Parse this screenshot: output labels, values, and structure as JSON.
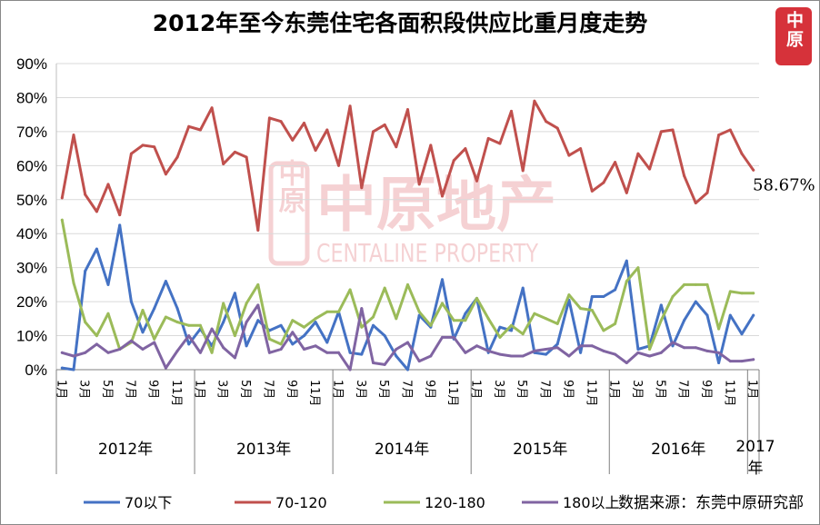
{
  "chart_data": {
    "type": "line",
    "title": "2012年至今东莞住宅各面积段供应比重月度走势",
    "source": "数据来源：东莞中原研究部",
    "watermark": {
      "cn": "中原地产",
      "en": "CENTALINE PROPERTY",
      "logo": "中原"
    },
    "logo": "中原",
    "ylim": [
      0,
      90
    ],
    "yticks": [
      0,
      10,
      20,
      30,
      40,
      50,
      60,
      70,
      80,
      90
    ],
    "ytick_labels": [
      "0%",
      "10%",
      "20%",
      "30%",
      "40%",
      "50%",
      "60%",
      "70%",
      "80%",
      "90%"
    ],
    "grid": true,
    "legend_position": "bottom",
    "month_labels": [
      "1月",
      "3月",
      "5月",
      "7月",
      "9月",
      "11月"
    ],
    "years": [
      {
        "label": "2012年",
        "months": 12
      },
      {
        "label": "2013年",
        "months": 12
      },
      {
        "label": "2014年",
        "months": 12
      },
      {
        "label": "2015年",
        "months": 12
      },
      {
        "label": "2016年",
        "months": 12
      },
      {
        "label": "2017年",
        "months": 1
      }
    ],
    "annotation": {
      "text": "58.67%",
      "series": "70-120"
    },
    "series": [
      {
        "name": "70以下",
        "color": "#4472C4",
        "values": [
          0.5,
          0,
          29,
          35.5,
          25,
          42.5,
          20,
          11,
          18,
          26,
          18,
          7.5,
          12,
          7,
          14,
          22.5,
          7,
          14.5,
          11.5,
          13,
          7.5,
          10,
          14,
          8,
          17,
          5,
          4.5,
          13,
          10,
          4,
          0,
          16,
          12.5,
          26.5,
          9,
          16.5,
          21,
          5,
          12.5,
          11.5,
          24,
          5,
          4.5,
          7.5,
          20.5,
          5,
          21.5,
          21.5,
          23.5,
          32,
          6,
          7,
          19,
          7,
          14.5,
          20,
          16,
          2,
          16,
          10.5,
          16
        ]
      },
      {
        "name": "70-120",
        "color": "#C0504D",
        "values": [
          50.5,
          69,
          51.5,
          46.5,
          54.5,
          45.5,
          63.5,
          66,
          65.5,
          57.5,
          62.5,
          71.5,
          70.5,
          77,
          60.5,
          64,
          62.5,
          41,
          74,
          73,
          67.5,
          72.5,
          64.5,
          70.5,
          60,
          77.5,
          53.5,
          70,
          72,
          65.5,
          76.5,
          54.5,
          66,
          51,
          61.5,
          65,
          55.5,
          68,
          66.5,
          76,
          58.5,
          79,
          73,
          71,
          63,
          65,
          52.5,
          55,
          61,
          52,
          63.5,
          59,
          70,
          70.5,
          57,
          49,
          52,
          69,
          70.5,
          63.5,
          58.67
        ]
      },
      {
        "name": "120-180",
        "color": "#9BBB59",
        "values": [
          44,
          25.5,
          14,
          10,
          16.5,
          6,
          8,
          17.5,
          9,
          15.5,
          14,
          13,
          13,
          5,
          19.5,
          10,
          19.5,
          25,
          9,
          7.5,
          14.5,
          12.5,
          15,
          17,
          17,
          23.5,
          12.5,
          15.5,
          24,
          15,
          25,
          17,
          13,
          19.5,
          14.5,
          14.5,
          21,
          15,
          9.5,
          13,
          10.5,
          16.5,
          15,
          13.5,
          22,
          18,
          17.5,
          11.5,
          13.5,
          26,
          30,
          6,
          14.5,
          21.5,
          25,
          25,
          25,
          12,
          23,
          22.5,
          22.5
        ]
      },
      {
        "name": "180以上",
        "color": "#8064A2",
        "values": [
          5,
          4,
          5,
          7.5,
          5,
          6,
          8.5,
          6,
          8,
          0.5,
          5.5,
          10,
          5,
          12,
          6.5,
          3.5,
          14,
          19,
          5,
          6,
          11,
          6,
          7,
          5,
          5,
          0,
          18,
          2,
          1.5,
          6,
          8,
          2.5,
          4,
          9.5,
          9.5,
          5,
          7,
          5.5,
          4.5,
          4,
          4,
          5.5,
          6,
          6.5,
          4,
          7,
          7,
          5.5,
          4.5,
          2,
          5,
          4,
          5,
          8,
          6.5,
          6.5,
          5.5,
          5,
          2.5,
          2.5,
          3
        ]
      }
    ]
  }
}
